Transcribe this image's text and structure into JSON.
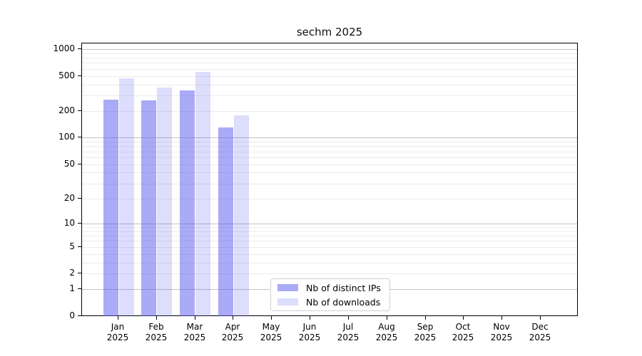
{
  "chart_data": {
    "type": "bar",
    "title": "sechm 2025",
    "x_months": [
      "Jan",
      "Feb",
      "Mar",
      "Apr",
      "May",
      "Jun",
      "Jul",
      "Aug",
      "Sep",
      "Oct",
      "Nov",
      "Dec"
    ],
    "x_year": "2025",
    "series": [
      {
        "name": "Nb of distinct IPs",
        "color": "rgba(86,86,238,0.5)",
        "values": [
          270,
          265,
          340,
          130,
          0,
          0,
          0,
          0,
          0,
          0,
          0,
          0
        ]
      },
      {
        "name": "Nb of downloads",
        "color": "rgba(86,86,238,0.2)",
        "values": [
          470,
          370,
          550,
          180,
          0,
          0,
          0,
          0,
          0,
          0,
          0,
          0
        ]
      }
    ],
    "yscale": "log1p",
    "ylim": [
      0,
      1160
    ],
    "ytick_labels": [
      "0",
      "1",
      "2",
      "5",
      "10",
      "20",
      "50",
      "100",
      "200",
      "500",
      "1000"
    ],
    "ytick_values": [
      0,
      1,
      2,
      5,
      10,
      20,
      50,
      100,
      200,
      500,
      1000
    ],
    "grid": {
      "orientation": "horizontal",
      "major_values": [
        1,
        10,
        100,
        1000
      ],
      "major_color": "#c2c2c2",
      "minor_color": "#ebebeb"
    },
    "legend": {
      "location": "inside-bottom-center"
    },
    "axis_color": "#000000",
    "background_color": "#ffffff"
  }
}
